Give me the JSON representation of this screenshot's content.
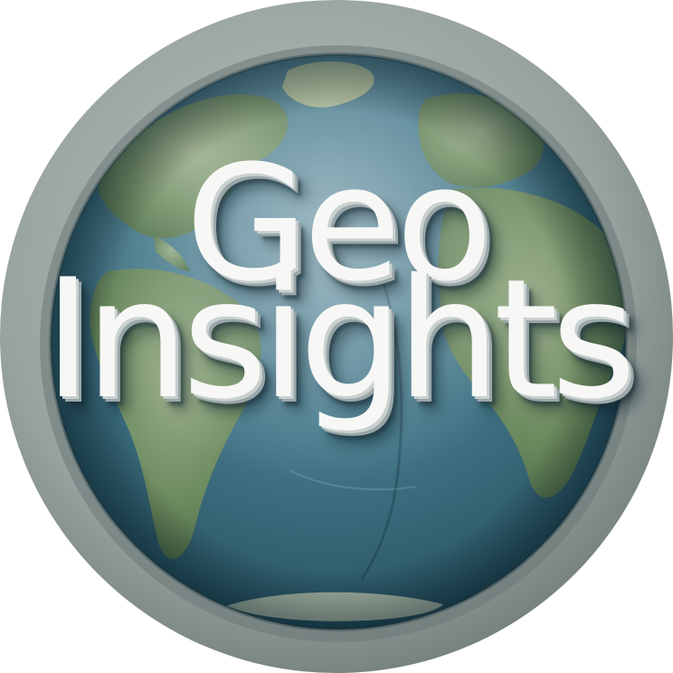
{
  "logo": {
    "line_1": "Geo",
    "line_2": "Insights"
  },
  "colors": {
    "outer_ring": "#9aa5a3",
    "ocean": "#3c6e80",
    "land": "#6f8f5e",
    "text": "#f7f8f6"
  },
  "icon": "globe-icon"
}
